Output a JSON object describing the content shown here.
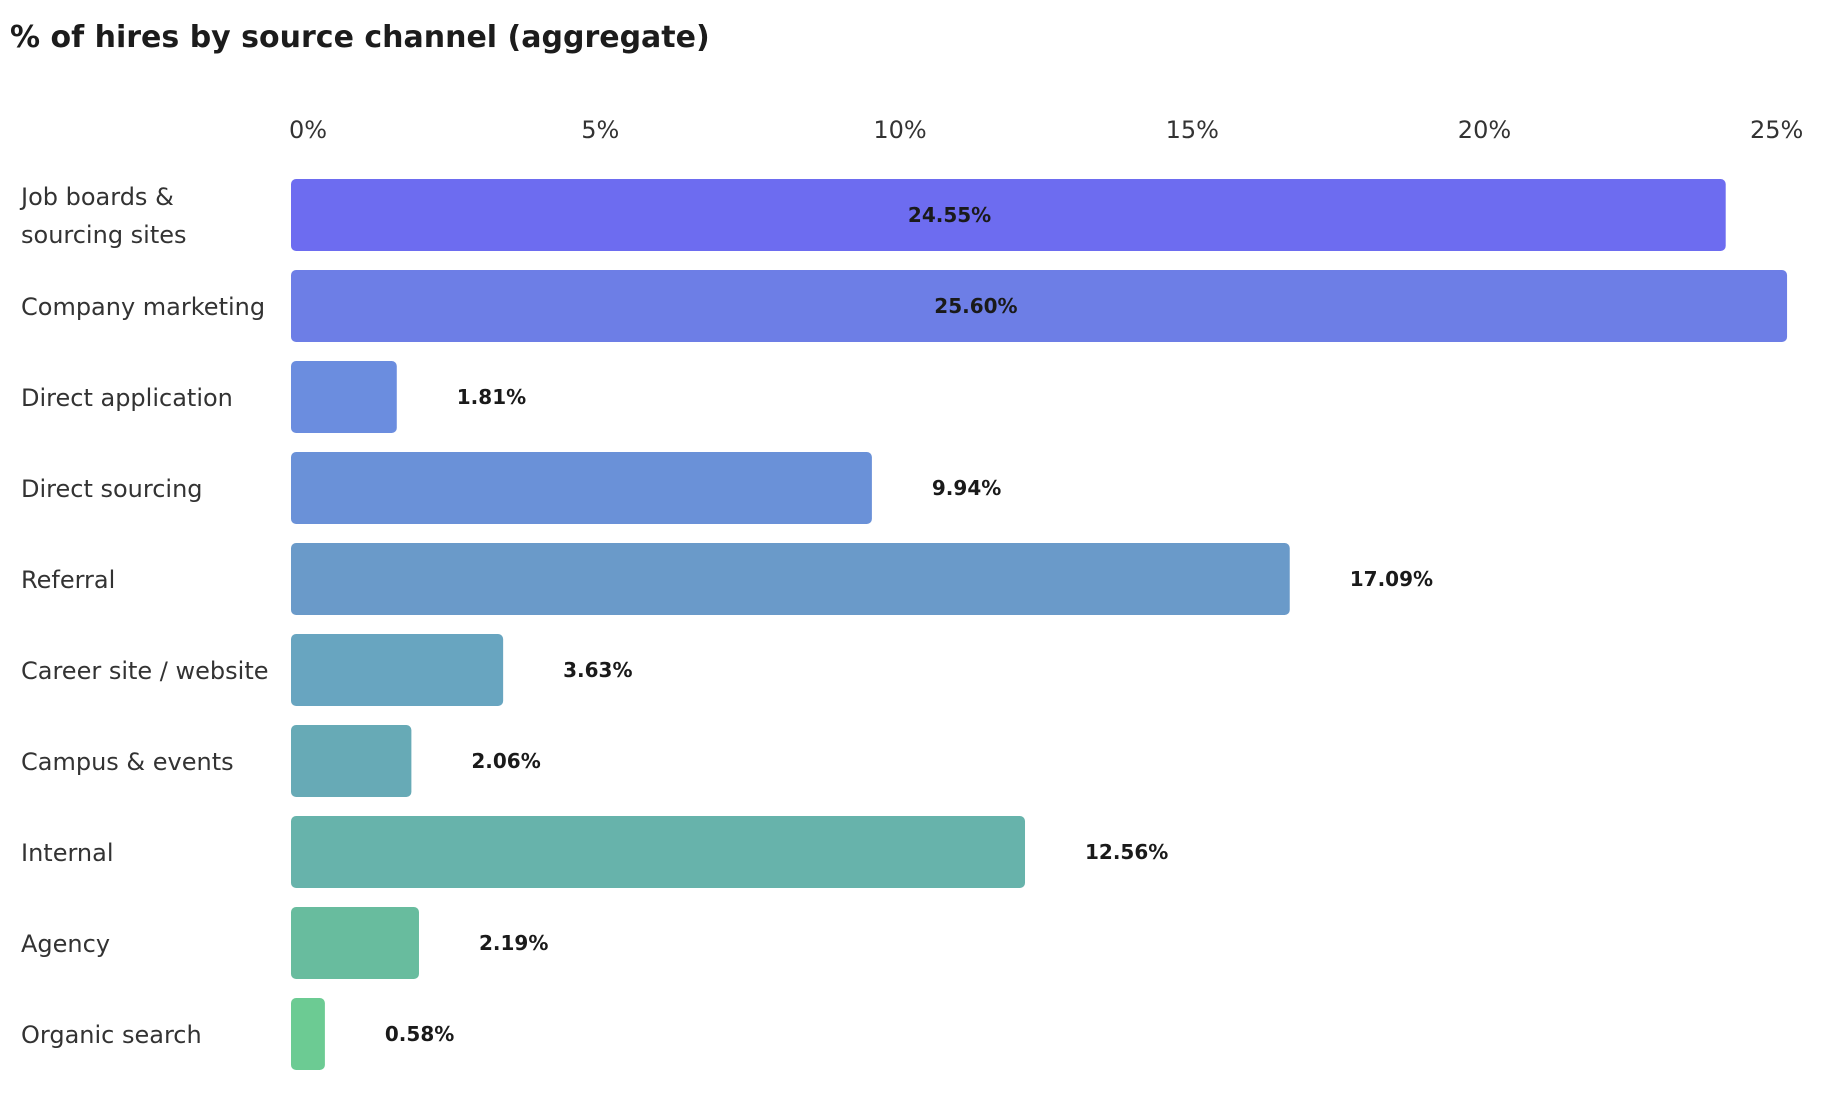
{
  "chart_data": {
    "type": "bar",
    "orientation": "horizontal",
    "title": "% of hires by source channel (aggregate)",
    "xlabel": "",
    "ylabel": "",
    "xlim": [
      0,
      25
    ],
    "x_ticks": [
      "0%",
      "5%",
      "10%",
      "15%",
      "20%",
      "25%"
    ],
    "x_tick_values": [
      0,
      5,
      10,
      15,
      20,
      25
    ],
    "grid": false,
    "legend": "none",
    "categories": [
      [
        "Job boards &",
        "sourcing sites"
      ],
      [
        "Company marketing"
      ],
      [
        "Direct application"
      ],
      [
        "Direct sourcing"
      ],
      [
        "Referral"
      ],
      [
        "Career site / website"
      ],
      [
        "Campus & events"
      ],
      [
        "Internal"
      ],
      [
        "Agency"
      ],
      [
        "Organic search"
      ]
    ],
    "values": [
      24.55,
      25.6,
      1.81,
      9.94,
      17.09,
      3.63,
      2.06,
      12.56,
      2.19,
      0.58
    ],
    "value_labels": [
      "24.55%",
      "25.60%",
      "1.81%",
      "9.94%",
      "17.09%",
      "3.63%",
      "2.06%",
      "12.56%",
      "2.19%",
      "0.58%"
    ],
    "colors": [
      "#6d6cf0",
      "#6d7ee6",
      "#6b8ddf",
      "#6a91d8",
      "#6a9ac9",
      "#68a5c0",
      "#67aab6",
      "#67b3ab",
      "#68bc9e",
      "#6ccb93"
    ]
  }
}
